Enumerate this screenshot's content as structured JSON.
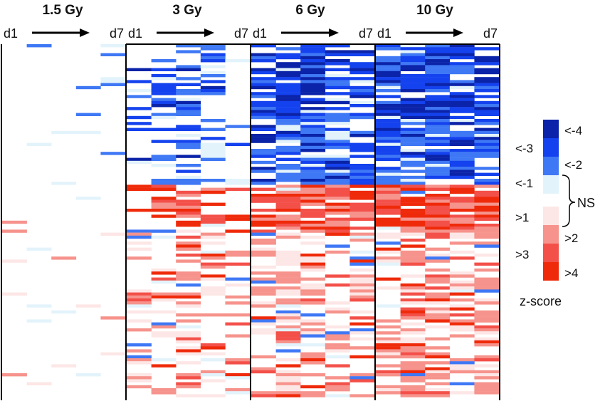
{
  "chart_data": {
    "type": "heatmap",
    "panels": [
      {
        "title": "1.5 Gy",
        "start": "d1",
        "end": "d7"
      },
      {
        "title": "3 Gy",
        "start": "d1",
        "end": "d7"
      },
      {
        "title": "6 Gy",
        "start": "d1",
        "end": "d7"
      },
      {
        "title": "10 Gy",
        "start": "d1",
        "end": "d7"
      }
    ],
    "columns_per_panel": 5,
    "legend": {
      "title": "z-score",
      "swatches": [
        {
          "label": "<-4",
          "color": "#0a23a8"
        },
        {
          "label": "",
          "color": "#1442ee"
        },
        {
          "label": "<-2",
          "color": "#3f78f5"
        },
        {
          "label": "<-1",
          "color": "#e3f3fb"
        },
        {
          "label": ">1",
          "color": "#fde6e6"
        },
        {
          "label": ">2",
          "color": "#f6938c"
        },
        {
          "label": "",
          "color": "#f35049"
        },
        {
          "label": ">4",
          "color": "#ef2a0a"
        }
      ],
      "side_labels": [
        "<-3",
        ">3"
      ],
      "bracket_label": "NS"
    },
    "bands": [
      {
        "panel": "3 Gy",
        "dominant": "negative",
        "rows_fraction": [
          0.0,
          0.4
        ]
      },
      {
        "panel": "6 Gy",
        "dominant": "negative",
        "rows_fraction": [
          0.0,
          0.4
        ]
      },
      {
        "panel": "10 Gy",
        "dominant": "negative",
        "rows_fraction": [
          0.0,
          0.4
        ]
      },
      {
        "panel": "3 Gy",
        "dominant": "positive",
        "rows_fraction": [
          0.4,
          1.0
        ]
      },
      {
        "panel": "6 Gy",
        "dominant": "positive",
        "rows_fraction": [
          0.4,
          1.0
        ]
      },
      {
        "panel": "10 Gy",
        "dominant": "positive",
        "rows_fraction": [
          0.4,
          1.0
        ]
      }
    ]
  }
}
